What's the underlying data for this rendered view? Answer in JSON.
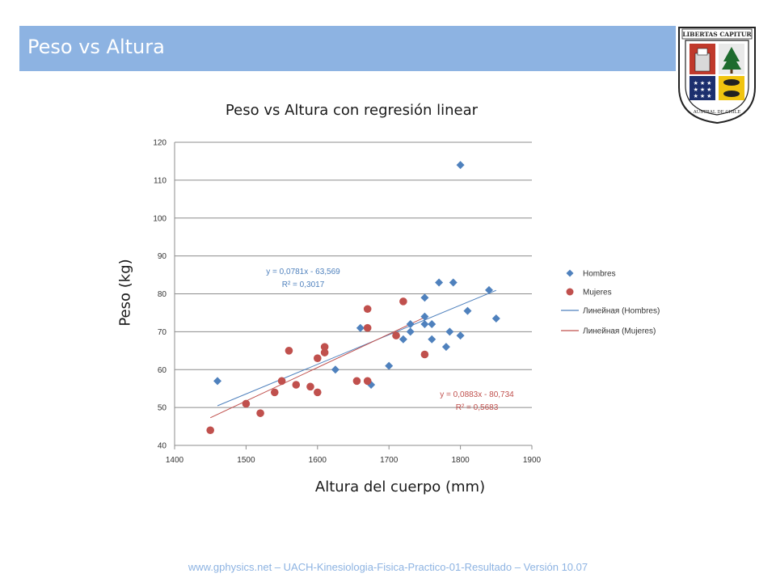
{
  "header": {
    "title": "Peso vs Altura"
  },
  "logo": {
    "top_text": "LIBERTAS CAPITUR",
    "ring_text": "UNIVERSIDAD AUSTRAL DE CHILE"
  },
  "footer": {
    "text": "www.gphysics.net – UACH-Kinesiologia-Fisica-Practico-01-Resultado – Versión 10.07"
  },
  "colors": {
    "hombres": "#4f81bd",
    "mujeres": "#c0504d",
    "banner": "#8db3e2"
  },
  "chart_data": {
    "type": "scatter",
    "title": "Peso vs Altura con regresión linear",
    "xlabel": "Altura del cuerpo (mm)",
    "ylabel": "Peso (kg)",
    "xlim": [
      1400,
      1900
    ],
    "ylim": [
      40,
      120
    ],
    "xticks": [
      1400,
      1500,
      1600,
      1700,
      1800,
      1900
    ],
    "yticks": [
      40,
      50,
      60,
      70,
      80,
      90,
      100,
      110,
      120
    ],
    "grid": "horizontal",
    "legend_position": "right",
    "series": [
      {
        "name": "Hombres",
        "marker": "diamond",
        "color": "#4f81bd",
        "points": [
          [
            1460,
            57
          ],
          [
            1550,
            57
          ],
          [
            1625,
            60
          ],
          [
            1660,
            71
          ],
          [
            1675,
            56
          ],
          [
            1700,
            61
          ],
          [
            1720,
            68
          ],
          [
            1730,
            70
          ],
          [
            1730,
            72
          ],
          [
            1750,
            72
          ],
          [
            1750,
            74
          ],
          [
            1750,
            79
          ],
          [
            1760,
            68
          ],
          [
            1760,
            72
          ],
          [
            1770,
            83
          ],
          [
            1780,
            66
          ],
          [
            1785,
            70
          ],
          [
            1790,
            83
          ],
          [
            1800,
            69
          ],
          [
            1800,
            114
          ],
          [
            1810,
            75.5
          ],
          [
            1840,
            81
          ],
          [
            1850,
            73.5
          ]
        ]
      },
      {
        "name": "Mujeres",
        "marker": "circle",
        "color": "#c0504d",
        "points": [
          [
            1450,
            44
          ],
          [
            1500,
            51
          ],
          [
            1520,
            48.5
          ],
          [
            1540,
            54
          ],
          [
            1550,
            57
          ],
          [
            1560,
            65
          ],
          [
            1570,
            56
          ],
          [
            1590,
            55.5
          ],
          [
            1600,
            54
          ],
          [
            1600,
            63
          ],
          [
            1610,
            64.5
          ],
          [
            1610,
            66
          ],
          [
            1655,
            57
          ],
          [
            1670,
            57
          ],
          [
            1670,
            71
          ],
          [
            1670,
            76
          ],
          [
            1710,
            69
          ],
          [
            1720,
            78
          ],
          [
            1750,
            64
          ]
        ]
      }
    ],
    "trendlines": [
      {
        "name": "Линейная (Hombres)",
        "color": "#4f81bd",
        "slope": 0.0781,
        "intercept": -63.569,
        "x_range": [
          1460,
          1850
        ],
        "equation": "y = 0,0781x - 63,569",
        "r2": "R² = 0,3017"
      },
      {
        "name": "Линейная (Mujeres)",
        "color": "#c0504d",
        "slope": 0.0883,
        "intercept": -80.734,
        "x_range": [
          1450,
          1750
        ],
        "equation": "y = 0,0883x - 80,734",
        "r2": "R² = 0,5683"
      }
    ]
  }
}
